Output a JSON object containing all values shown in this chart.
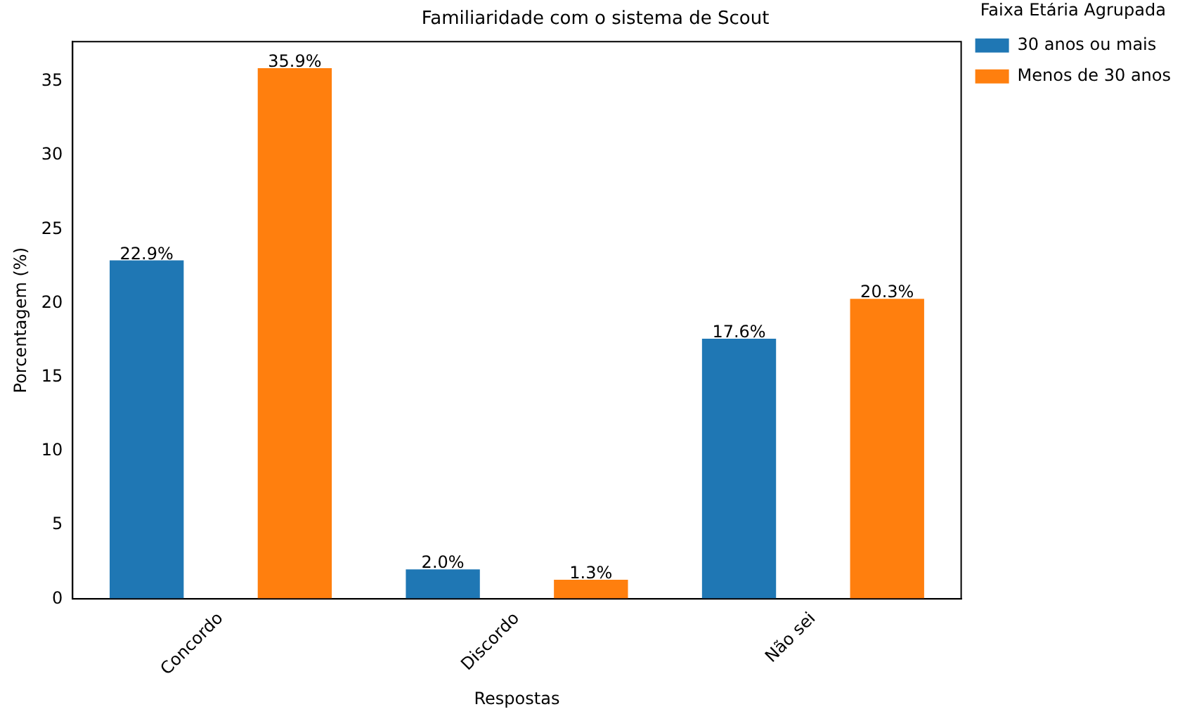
{
  "chart_data": {
    "type": "bar",
    "title": "Familiaridade com o sistema de Scout",
    "xlabel": "Respostas",
    "ylabel": "Porcentagem (%)",
    "legend_title": "Faixa Etária Agrupada",
    "categories": [
      "Concordo",
      "Discordo",
      "Não sei"
    ],
    "series": [
      {
        "name": "30 anos ou mais",
        "color": "#1f77b4",
        "values": [
          22.9,
          2.0,
          17.6
        ],
        "value_labels": [
          "22.9%",
          "2.0%",
          "17.6%"
        ]
      },
      {
        "name": "Menos de 30 anos",
        "color": "#ff7f0e",
        "values": [
          35.9,
          1.3,
          20.3
        ],
        "value_labels": [
          "35.9%",
          "1.3%",
          "20.3%"
        ]
      }
    ],
    "ylim": [
      0,
      37.7
    ],
    "yticks": [
      0,
      5,
      10,
      15,
      20,
      25,
      30,
      35
    ],
    "grid": false,
    "legend": "top right"
  }
}
